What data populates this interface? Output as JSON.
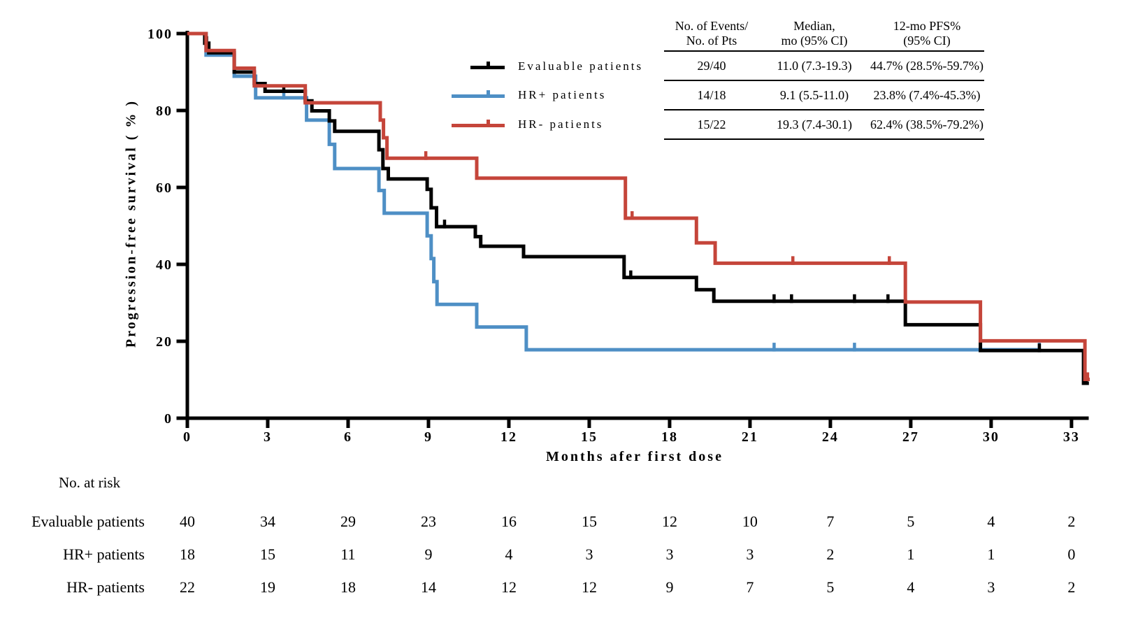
{
  "chart_data": {
    "type": "line",
    "subtype": "kaplan-meier-step",
    "title": "",
    "xlabel": "Months afer first dose",
    "ylabel": "Progression-free survival ( % )",
    "x_ticks": [
      0,
      3,
      6,
      9,
      12,
      15,
      18,
      21,
      24,
      27,
      30,
      33
    ],
    "y_ticks": [
      0,
      20,
      40,
      60,
      80,
      100
    ],
    "xlim": [
      0,
      33.7
    ],
    "ylim": [
      0,
      100
    ],
    "grid": false,
    "series": [
      {
        "name": "HR+ patients",
        "color": "#4e8fc5",
        "start": [
          0,
          100
        ],
        "steps": [
          [
            0.7,
            94.4
          ],
          [
            1.75,
            88.9
          ],
          [
            2.55,
            83.3
          ],
          [
            4.45,
            77.5
          ],
          [
            5.3,
            71.2
          ],
          [
            5.5,
            64.9
          ],
          [
            7.15,
            59.2
          ],
          [
            7.35,
            53.3
          ],
          [
            8.95,
            47.4
          ],
          [
            9.1,
            41.5
          ],
          [
            9.2,
            35.5
          ],
          [
            9.32,
            29.6
          ],
          [
            10.8,
            23.7
          ],
          [
            12.65,
            17.8
          ]
        ],
        "end_x": 31.85,
        "censors": [
          [
            3.6,
            83.3
          ],
          [
            21.9,
            17.8
          ],
          [
            24.9,
            17.8
          ],
          [
            31.8,
            17.8
          ]
        ]
      },
      {
        "name": "Evaluable patients",
        "color": "#000000",
        "start": [
          0,
          100
        ],
        "steps": [
          [
            0.65,
            97.5
          ],
          [
            0.8,
            95.0
          ],
          [
            1.75,
            90.0
          ],
          [
            2.5,
            87.0
          ],
          [
            2.9,
            85.0
          ],
          [
            4.4,
            82.5
          ],
          [
            4.65,
            79.9
          ],
          [
            5.3,
            77.3
          ],
          [
            5.5,
            74.6
          ],
          [
            7.15,
            69.8
          ],
          [
            7.3,
            64.9
          ],
          [
            7.5,
            62.2
          ],
          [
            8.95,
            59.5
          ],
          [
            9.1,
            54.7
          ],
          [
            9.3,
            49.8
          ],
          [
            10.75,
            47.2
          ],
          [
            10.95,
            44.7
          ],
          [
            12.55,
            42.0
          ],
          [
            16.3,
            36.6
          ],
          [
            19.0,
            33.4
          ],
          [
            19.65,
            30.4
          ],
          [
            26.8,
            24.3
          ],
          [
            29.6,
            17.6
          ],
          [
            33.45,
            9.1
          ]
        ],
        "end_x": 33.65,
        "censors": [
          [
            0.72,
            97.5
          ],
          [
            3.6,
            85.0
          ],
          [
            9.6,
            49.8
          ],
          [
            16.55,
            36.6
          ],
          [
            21.9,
            30.4
          ],
          [
            22.55,
            30.4
          ],
          [
            24.9,
            30.4
          ],
          [
            26.15,
            30.4
          ],
          [
            31.8,
            17.6
          ],
          [
            33.55,
            9.1
          ]
        ]
      },
      {
        "name": "HR- patients",
        "color": "#c5453a",
        "start": [
          0,
          100
        ],
        "steps": [
          [
            0.7,
            95.6
          ],
          [
            1.75,
            91.0
          ],
          [
            2.5,
            86.4
          ],
          [
            4.4,
            82.0
          ],
          [
            7.2,
            77.5
          ],
          [
            7.32,
            72.9
          ],
          [
            7.45,
            67.6
          ],
          [
            10.8,
            62.4
          ],
          [
            16.35,
            52.0
          ],
          [
            19.0,
            45.6
          ],
          [
            19.7,
            40.3
          ],
          [
            26.8,
            30.2
          ],
          [
            29.6,
            20.1
          ],
          [
            33.5,
            10.1
          ]
        ],
        "end_x": 33.68,
        "censors": [
          [
            8.9,
            67.6
          ],
          [
            16.6,
            52.0
          ],
          [
            22.6,
            40.3
          ],
          [
            26.2,
            40.3
          ],
          [
            33.6,
            10.1
          ]
        ]
      }
    ]
  },
  "legend": {
    "items": [
      {
        "label": "Evaluable patients",
        "color": "#000000"
      },
      {
        "label": "HR+ patients",
        "color": "#4e8fc5"
      },
      {
        "label": "HR- patients",
        "color": "#c5453a"
      }
    ]
  },
  "stats_table": {
    "columns": [
      [
        "No. of Events/",
        "No. of Pts"
      ],
      [
        "Median,",
        "mo (95% CI)"
      ],
      [
        "12-mo PFS%",
        "(95% CI)"
      ]
    ],
    "rows": [
      [
        "29/40",
        "11.0 (7.3-19.3)",
        "44.7% (28.5%-59.7%)"
      ],
      [
        "14/18",
        "9.1 (5.5-11.0)",
        "23.8% (7.4%-45.3%)"
      ],
      [
        "15/22",
        "19.3 (7.4-30.1)",
        "62.4% (38.5%-79.2%)"
      ]
    ]
  },
  "risk_table": {
    "title": "No. at risk",
    "months": [
      0,
      3,
      6,
      9,
      12,
      15,
      18,
      21,
      24,
      27,
      30,
      33
    ],
    "rows": [
      {
        "label": "Evaluable patients",
        "counts": [
          "40",
          "34",
          "29",
          "23",
          "16",
          "15",
          "12",
          "10",
          "7",
          "5",
          "4",
          "2"
        ]
      },
      {
        "label": "HR+ patients",
        "counts": [
          "18",
          "15",
          "11",
          "9",
          "4",
          "3",
          "3",
          "3",
          "2",
          "1",
          "1",
          "0"
        ]
      },
      {
        "label": "HR- patients",
        "counts": [
          "22",
          "19",
          "18",
          "14",
          "12",
          "12",
          "9",
          "7",
          "5",
          "4",
          "3",
          "2"
        ]
      }
    ]
  }
}
